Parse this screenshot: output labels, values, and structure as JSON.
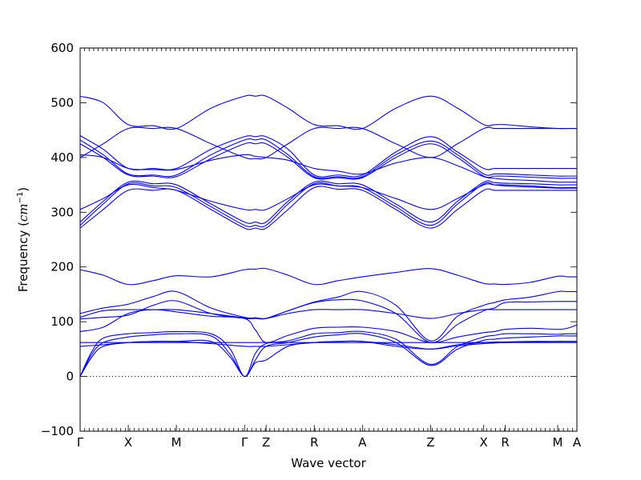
{
  "chart_data": {
    "type": "line",
    "title": "",
    "xlabel": "Wave vector",
    "ylabel": "Frequency (cm⁻¹)",
    "ylabel_parts": {
      "base": "Frequency (",
      "unit": "cm",
      "exp": "−1",
      "close": ")"
    },
    "ylim": [
      -100,
      600
    ],
    "yticks": [
      -100,
      0,
      100,
      200,
      300,
      400,
      500,
      600
    ],
    "xlim": [
      0,
      12.9
    ],
    "grid": false,
    "high_symmetry_points": [
      {
        "label": "Γ",
        "x": 0
      },
      {
        "label": "X",
        "x": 1.25
      },
      {
        "label": "M",
        "x": 2.5
      },
      {
        "label": "Γ",
        "x": 4.27
      },
      {
        "label": "Z",
        "x": 4.83
      },
      {
        "label": "R",
        "x": 6.08
      },
      {
        "label": "A",
        "x": 7.33
      },
      {
        "label": "Z",
        "x": 9.1
      },
      {
        "label": "X",
        "x": 10.48
      },
      {
        "label": "R",
        "x": 11.04
      },
      {
        "label": "M",
        "x": 12.4
      },
      {
        "label": "A",
        "x": 12.9
      }
    ],
    "series": [
      {
        "x": [
          0,
          0.6,
          1.25,
          1.9,
          2.5,
          3.4,
          4.27,
          4.55,
          4.83,
          5.4,
          6.08,
          6.7,
          7.33,
          8.2,
          9.1,
          9.8,
          10.48,
          10.76,
          11.04,
          11.7,
          12.4,
          12.65,
          12.9
        ],
        "values": [
          512,
          500,
          460,
          458,
          453,
          490,
          512,
          512,
          512,
          490,
          460,
          458,
          453,
          490,
          512,
          490,
          460,
          460,
          460,
          456,
          453,
          453,
          453
        ]
      },
      {
        "x": [
          0,
          0.6,
          1.25,
          1.9,
          2.5,
          3.4,
          4.27,
          4.55,
          4.83,
          5.4,
          6.08,
          6.7,
          7.33,
          8.2,
          9.1,
          9.8,
          10.48,
          10.76,
          11.04,
          11.7,
          12.4,
          12.65,
          12.9
        ],
        "values": [
          400,
          425,
          453,
          453,
          453,
          425,
          400,
          398,
          400,
          425,
          453,
          453,
          453,
          425,
          400,
          425,
          453,
          453,
          453,
          453,
          453,
          453,
          453
        ]
      },
      {
        "x": [
          0,
          0.6,
          1.25,
          1.9,
          2.5,
          3.4,
          4.27,
          4.55,
          4.83,
          5.4,
          6.08,
          6.7,
          7.33,
          8.2,
          9.1,
          9.8,
          10.48,
          10.76,
          11.04,
          11.7,
          12.4,
          12.65,
          12.9
        ],
        "values": [
          440,
          415,
          380,
          380,
          380,
          415,
          438,
          438,
          438,
          415,
          368,
          368,
          368,
          410,
          438,
          410,
          380,
          380,
          380,
          380,
          380,
          380,
          380
        ]
      },
      {
        "x": [
          0,
          0.6,
          1.25,
          1.9,
          2.5,
          3.4,
          4.27,
          4.55,
          4.83,
          5.4,
          6.08,
          6.7,
          7.33,
          8.2,
          9.1,
          9.8,
          10.48,
          10.76,
          11.04,
          11.7,
          12.4,
          12.65,
          12.9
        ],
        "values": [
          432,
          405,
          370,
          368,
          368,
          405,
          432,
          432,
          432,
          405,
          365,
          365,
          365,
          405,
          430,
          405,
          370,
          370,
          370,
          368,
          366,
          366,
          366
        ]
      },
      {
        "x": [
          0,
          0.6,
          1.25,
          1.9,
          2.5,
          3.4,
          4.27,
          4.55,
          4.83,
          5.4,
          6.08,
          6.7,
          7.33,
          8.2,
          9.1,
          9.8,
          10.48,
          10.76,
          11.04,
          11.7,
          12.4,
          12.65,
          12.9
        ],
        "values": [
          425,
          400,
          368,
          366,
          365,
          398,
          425,
          425,
          425,
          400,
          363,
          363,
          363,
          400,
          425,
          400,
          366,
          366,
          366,
          364,
          362,
          362,
          362
        ]
      },
      {
        "x": [
          0,
          0.6,
          1.25,
          1.9,
          2.5,
          3.4,
          4.27,
          4.55,
          4.83,
          5.4,
          6.08,
          6.7,
          7.33,
          8.2,
          9.1,
          9.8,
          10.48,
          10.76,
          11.04,
          11.7,
          12.4,
          12.65,
          12.9
        ],
        "values": [
          405,
          400,
          380,
          378,
          378,
          395,
          405,
          402,
          400,
          395,
          380,
          375,
          370,
          390,
          400,
          385,
          365,
          362,
          360,
          358,
          355,
          355,
          355
        ]
      },
      {
        "x": [
          0,
          0.6,
          1.25,
          1.9,
          2.5,
          3.4,
          4.27,
          4.55,
          4.83,
          5.4,
          6.08,
          6.7,
          7.33,
          8.2,
          9.1,
          9.8,
          10.48,
          10.76,
          11.04,
          11.7,
          12.4,
          12.65,
          12.9
        ],
        "values": [
          305,
          325,
          350,
          345,
          340,
          320,
          305,
          305,
          305,
          325,
          350,
          348,
          345,
          325,
          305,
          325,
          350,
          350,
          350,
          348,
          345,
          345,
          345
        ]
      },
      {
        "x": [
          0,
          0.6,
          1.25,
          1.9,
          2.5,
          3.4,
          4.27,
          4.55,
          4.83,
          5.4,
          6.08,
          6.7,
          7.33,
          8.2,
          9.1,
          9.8,
          10.48,
          10.76,
          11.04,
          11.7,
          12.4,
          12.65,
          12.9
        ],
        "values": [
          282,
          320,
          355,
          352,
          350,
          315,
          282,
          282,
          282,
          320,
          355,
          352,
          350,
          315,
          282,
          320,
          355,
          354,
          353,
          352,
          350,
          350,
          350
        ]
      },
      {
        "x": [
          0,
          0.6,
          1.25,
          1.9,
          2.5,
          3.4,
          4.27,
          4.55,
          4.83,
          5.4,
          6.08,
          6.7,
          7.33,
          8.2,
          9.1,
          9.8,
          10.48,
          10.76,
          11.04,
          11.7,
          12.4,
          12.65,
          12.9
        ],
        "values": [
          276,
          315,
          352,
          348,
          345,
          310,
          276,
          276,
          276,
          315,
          352,
          348,
          345,
          310,
          276,
          315,
          352,
          350,
          348,
          346,
          344,
          344,
          344
        ]
      },
      {
        "x": [
          0,
          0.6,
          1.25,
          1.9,
          2.5,
          3.4,
          4.27,
          4.55,
          4.83,
          5.4,
          6.08,
          6.7,
          7.33,
          8.2,
          9.1,
          9.8,
          10.48,
          10.76,
          11.04,
          11.7,
          12.4,
          12.65,
          12.9
        ],
        "values": [
          271,
          305,
          340,
          340,
          340,
          305,
          271,
          271,
          271,
          305,
          345,
          342,
          340,
          305,
          271,
          305,
          340,
          340,
          340,
          340,
          340,
          340,
          340
        ]
      },
      {
        "x": [
          0,
          0.6,
          1.25,
          1.9,
          2.5,
          3.4,
          4.27,
          4.55,
          4.83,
          5.4,
          6.08,
          6.7,
          7.33,
          8.2,
          9.1,
          9.8,
          10.48,
          10.76,
          11.04,
          11.7,
          12.4,
          12.65,
          12.9
        ],
        "values": [
          195,
          185,
          168,
          175,
          184,
          182,
          195,
          196,
          197,
          185,
          168,
          175,
          182,
          190,
          197,
          185,
          170,
          169,
          168,
          172,
          183,
          182,
          182
        ]
      },
      {
        "x": [
          0,
          0.6,
          1.25,
          1.9,
          2.5,
          3.4,
          4.27,
          4.55,
          4.83,
          5.4,
          6.08,
          6.7,
          7.33,
          8.2,
          9.1,
          9.8,
          10.48,
          10.76,
          11.04,
          11.7,
          12.4,
          12.65,
          12.9
        ],
        "values": [
          115,
          125,
          132,
          146,
          155,
          125,
          108,
          107,
          106,
          120,
          136,
          145,
          155,
          130,
          65,
          110,
          130,
          135,
          140,
          145,
          155,
          155,
          155
        ]
      },
      {
        "x": [
          0,
          0.6,
          1.25,
          1.9,
          2.5,
          3.4,
          4.27,
          4.55,
          4.83,
          5.4,
          6.08,
          6.7,
          7.33,
          8.2,
          9.1,
          9.8,
          10.48,
          10.76,
          11.04,
          11.7,
          12.4,
          12.65,
          12.9
        ],
        "values": [
          108,
          120,
          122,
          122,
          122,
          115,
          107,
          107,
          106,
          115,
          122,
          122,
          122,
          115,
          106,
          115,
          122,
          122,
          122,
          122,
          122,
          122,
          122
        ]
      },
      {
        "x": [
          0,
          0.6,
          1.25,
          1.9,
          2.5,
          3.4,
          4.27,
          4.55,
          4.83,
          5.4,
          6.08,
          6.7,
          7.33,
          8.2,
          9.1,
          9.8,
          10.48,
          10.76,
          11.04,
          11.7,
          12.4,
          12.65,
          12.9
        ],
        "values": [
          105,
          108,
          112,
          130,
          138,
          115,
          106,
          106,
          106,
          120,
          135,
          140,
          138,
          115,
          62,
          95,
          120,
          125,
          135,
          136,
          137,
          137,
          137
        ]
      },
      {
        "x": [
          0,
          0.6,
          1.25,
          1.9,
          2.5,
          3.4,
          4.27,
          4.55,
          4.83,
          5.4,
          6.08,
          6.7,
          7.33,
          8.2,
          9.1,
          9.8,
          10.48,
          10.76,
          11.04,
          11.7,
          12.4,
          12.65,
          12.9
        ],
        "values": [
          82,
          90,
          115,
          122,
          118,
          110,
          106,
          85,
          62,
          75,
          88,
          90,
          90,
          82,
          62,
          72,
          80,
          82,
          86,
          88,
          86,
          88,
          94
        ]
      },
      {
        "x": [
          0,
          0.3,
          0.6,
          1.25,
          1.9,
          2.5,
          3.4,
          3.9,
          4.27,
          4.55,
          4.83,
          5.4,
          6.08,
          6.7,
          7.33,
          8.2,
          9.1,
          9.8,
          10.48,
          10.76,
          11.04,
          11.7,
          12.4,
          12.65,
          12.9
        ],
        "values": [
          0,
          45,
          70,
          78,
          80,
          82,
          78,
          50,
          0,
          42,
          60,
          65,
          78,
          80,
          82,
          68,
          22,
          55,
          72,
          75,
          78,
          78,
          77,
          78,
          78
        ]
      },
      {
        "x": [
          0,
          0.3,
          0.6,
          1.25,
          1.9,
          2.5,
          3.4,
          3.9,
          4.27,
          4.55,
          4.83,
          5.4,
          6.08,
          6.7,
          7.33,
          8.2,
          9.1,
          9.8,
          10.48,
          10.76,
          11.04,
          11.7,
          12.4,
          12.65,
          12.9
        ],
        "values": [
          0,
          40,
          62,
          72,
          76,
          78,
          74,
          40,
          0,
          30,
          55,
          62,
          72,
          76,
          78,
          62,
          20,
          50,
          66,
          68,
          70,
          72,
          74,
          74,
          74
        ]
      },
      {
        "x": [
          0,
          0.3,
          0.6,
          1.25,
          1.9,
          2.5,
          3.4,
          3.9,
          4.27,
          4.55,
          4.83,
          5.4,
          6.08,
          6.7,
          7.33,
          8.2,
          9.1,
          9.8,
          10.48,
          10.76,
          11.04,
          11.7,
          12.4,
          12.65,
          12.9
        ],
        "values": [
          0,
          35,
          55,
          62,
          64,
          64,
          64,
          35,
          0,
          25,
          30,
          55,
          62,
          64,
          64,
          55,
          50,
          58,
          62,
          63,
          63,
          64,
          64,
          64,
          64
        ]
      },
      {
        "x": [
          0,
          0.6,
          1.25,
          1.9,
          2.5,
          3.4,
          4.27,
          4.55,
          4.83,
          5.4,
          6.08,
          6.7,
          7.33,
          8.2,
          9.1,
          9.8,
          10.48,
          10.76,
          11.04,
          11.7,
          12.4,
          12.65,
          12.9
        ],
        "values": [
          62,
          62,
          62,
          62,
          62,
          62,
          62,
          62,
          62,
          62,
          62,
          62,
          62,
          62,
          62,
          62,
          62,
          62,
          62,
          62,
          62,
          62,
          62
        ]
      },
      {
        "x": [
          0,
          0.6,
          1.25,
          1.9,
          2.5,
          3.4,
          4.27,
          4.55,
          4.83,
          5.4,
          6.08,
          6.7,
          7.33,
          8.2,
          9.1,
          9.8,
          10.48,
          10.76,
          11.04,
          11.7,
          12.4,
          12.65,
          12.9
        ],
        "values": [
          55,
          58,
          62,
          64,
          64,
          60,
          55,
          55,
          55,
          58,
          62,
          64,
          64,
          58,
          50,
          56,
          60,
          61,
          62,
          63,
          64,
          64,
          64
        ]
      }
    ]
  }
}
